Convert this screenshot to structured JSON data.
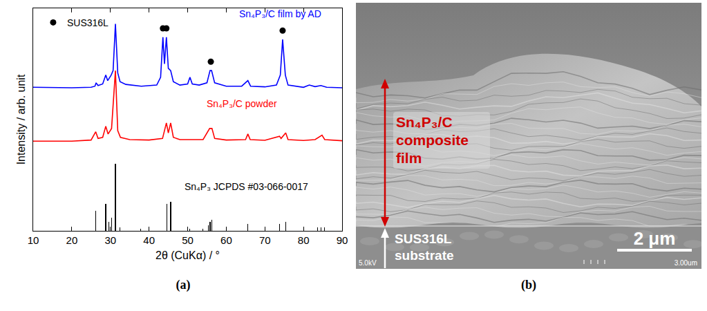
{
  "chart_data": {
    "type": "line",
    "panel_label": "(a)",
    "x_label": "2θ (CuKα) / °",
    "y_label": "Intensity / arb. unit",
    "xlim": [
      10,
      90
    ],
    "xticks": [
      10,
      20,
      30,
      40,
      50,
      60,
      70,
      80,
      90
    ],
    "ylim": [
      0,
      100
    ],
    "tick_labels": "x",
    "grid": false,
    "legend": "upper left",
    "series": [
      {
        "name": "Sn₄P₃/C film by AD",
        "color": "#0000ff",
        "type": "line",
        "x": [
          10,
          20,
          25,
          26,
          26.3,
          26.8,
          28,
          28.8,
          29.3,
          30.2,
          30.7,
          31.3,
          31.9,
          32.5,
          34,
          38,
          42,
          43,
          43.6,
          44.0,
          44.5,
          45.0,
          45.6,
          46.3,
          48,
          50,
          50.6,
          51.2,
          53,
          55,
          55.8,
          56.2,
          57,
          60,
          64,
          65.6,
          66.3,
          70,
          73,
          74,
          74.6,
          75.3,
          76,
          80,
          81.5,
          83,
          84.5,
          86,
          90
        ],
        "values": [
          64.5,
          64.3,
          64.5,
          65,
          66.5,
          65.3,
          66,
          70,
          67.5,
          70,
          72,
          93,
          71,
          67,
          65.8,
          65,
          65.5,
          69,
          87,
          75,
          87,
          73,
          72,
          67,
          65.5,
          66,
          69,
          66,
          65.5,
          66.5,
          72,
          72,
          66.5,
          65,
          65,
          67.5,
          65,
          64.7,
          65.5,
          70,
          86,
          70,
          65.5,
          64.5,
          65.5,
          64.8,
          65.3,
          64.5,
          64.3
        ]
      },
      {
        "name": "Sn₄P₃/C powder",
        "color": "#ff0000",
        "type": "line",
        "x": [
          10,
          20,
          25,
          26.2,
          26.8,
          28,
          28.8,
          29.4,
          30.3,
          31.3,
          31.9,
          32.6,
          35,
          40,
          43.5,
          44.5,
          45.0,
          45.6,
          46.3,
          48,
          50,
          54,
          55.7,
          56.3,
          57,
          60,
          65,
          65.6,
          66.2,
          70,
          73.8,
          74.2,
          75.4,
          76,
          80,
          83,
          84.8,
          85.5,
          90
        ],
        "values": [
          40.3,
          40.3,
          40.8,
          44.5,
          41.5,
          42,
          47,
          43.5,
          46,
          72,
          45,
          42,
          41,
          40.8,
          41.5,
          48.5,
          44,
          48.5,
          42,
          41,
          41,
          41,
          46,
          46,
          41.5,
          40.8,
          41,
          43.5,
          41,
          40.7,
          42.5,
          41.5,
          44,
          41,
          40.6,
          41,
          43,
          41,
          40.5
        ]
      },
      {
        "name": "Sn₄P₃ JCPDS #03-066-0017",
        "color": "#000000",
        "type": "bar",
        "x": [
          26.2,
          28.8,
          29.6,
          30.3,
          31.3,
          32.5,
          37.8,
          44.6,
          45.6,
          50.5,
          53.9,
          55.3,
          55.8,
          56.3,
          65.6,
          73.8,
          75.4,
          83.7,
          84.6,
          85.4
        ],
        "values": [
          9,
          12,
          4,
          6,
          30,
          1.5,
          1,
          12,
          13,
          1,
          1,
          2.5,
          4,
          5,
          3,
          3,
          4,
          1.5,
          1.5,
          1.5
        ]
      },
      {
        "name": "SUS316L",
        "color": "#000000",
        "type": "scatter",
        "marker": "circle",
        "x": [
          43.6,
          44.5,
          56.0,
          74.6
        ],
        "values": [
          91,
          91,
          76,
          90
        ]
      }
    ]
  },
  "image_panel": {
    "panel_label": "(b)",
    "film_label": [
      "Sn₄P₃/C",
      "composite",
      "film"
    ],
    "substrate_label": [
      "SUS316L",
      "substrate"
    ],
    "scale_bar": "2 μm",
    "voltage": "5.0kV",
    "field_width": "3.00um"
  }
}
